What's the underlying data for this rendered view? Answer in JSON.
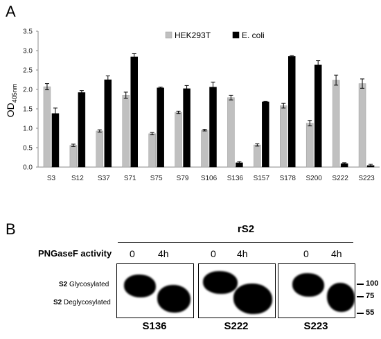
{
  "panel_a": {
    "letter": "A"
  },
  "panel_b": {
    "letter": "B",
    "construct": "rS2",
    "treatment_label": "PNGaseF activity",
    "blots": [
      {
        "name": "S136",
        "lanes": [
          "0",
          "4h"
        ]
      },
      {
        "name": "S222",
        "lanes": [
          "0",
          "4h"
        ]
      },
      {
        "name": "S223",
        "lanes": [
          "0",
          "4h"
        ]
      }
    ],
    "band_labels": [
      {
        "prefix": "S2",
        "text": " Glycosylated"
      },
      {
        "prefix": "S2",
        "text": " Deglycosylated"
      }
    ],
    "markers": [
      "100",
      "75",
      "55"
    ]
  },
  "chart_data": {
    "type": "bar",
    "categories": [
      "S3",
      "S12",
      "S37",
      "S71",
      "S75",
      "S79",
      "S106",
      "S136",
      "S157",
      "S178",
      "S200",
      "S222",
      "S223"
    ],
    "series": [
      {
        "name": "HEK293T",
        "color": "#c0c0c0",
        "values": [
          2.07,
          0.56,
          0.93,
          1.85,
          0.86,
          1.41,
          0.95,
          1.79,
          0.57,
          1.58,
          1.13,
          2.24,
          2.15
        ],
        "errors": [
          0.08,
          0.03,
          0.03,
          0.08,
          0.03,
          0.03,
          0.02,
          0.06,
          0.03,
          0.06,
          0.07,
          0.13,
          0.12
        ]
      },
      {
        "name": "E. coli",
        "color": "#000000",
        "values": [
          1.38,
          1.92,
          2.25,
          2.84,
          2.04,
          2.02,
          2.06,
          0.11,
          1.68,
          2.85,
          2.63,
          0.09,
          0.04
        ],
        "errors": [
          0.14,
          0.05,
          0.1,
          0.08,
          0.02,
          0.08,
          0.13,
          0.03,
          0.01,
          0.02,
          0.11,
          0.02,
          0.03
        ]
      }
    ],
    "ylabel": "OD",
    "ylabel_sub": "405nm",
    "yticks": [
      "0.0",
      "0.5",
      "1.0",
      "1.5",
      "2.0",
      "2.5",
      "3.0",
      "3.5"
    ],
    "ylim": [
      0,
      3.5
    ],
    "legend_position": "top-center"
  }
}
